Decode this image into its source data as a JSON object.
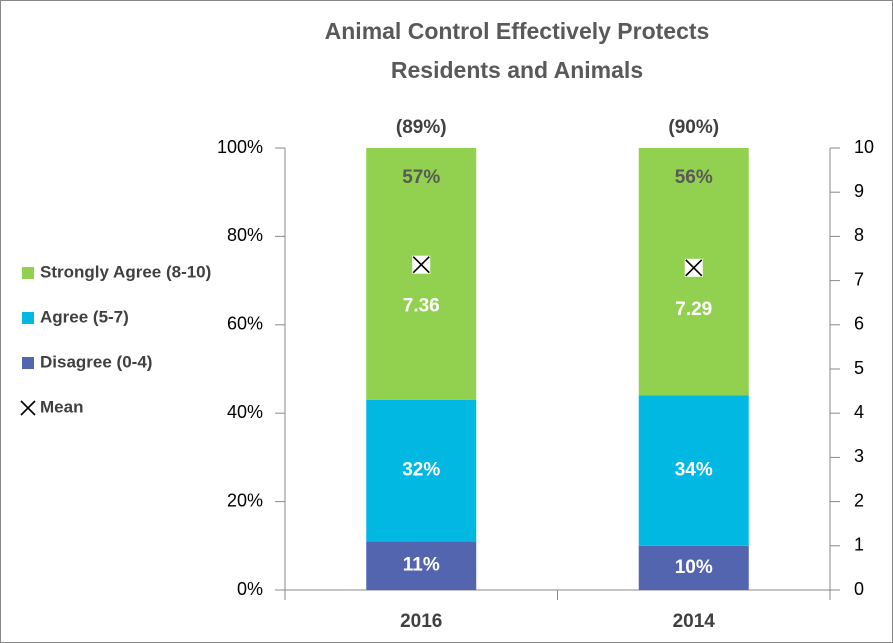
{
  "chart_data": {
    "type": "stacked_bar",
    "title": [
      "Animal Control Effectively Protects",
      "Residents and Animals"
    ],
    "categories": [
      "2016",
      "2014"
    ],
    "series": [
      {
        "name": "Disagree (0-4)",
        "color": "#5465b0",
        "values": [
          11,
          10
        ],
        "value_labels": [
          "11%",
          "10%"
        ],
        "label_color": "#ffffff"
      },
      {
        "name": "Agree (5-7)",
        "color": "#00b8e2",
        "values": [
          32,
          34
        ],
        "value_labels": [
          "32%",
          "34%"
        ],
        "label_color": "#ffffff"
      },
      {
        "name": "Strongly Agree (8-10)",
        "color": "#92d050",
        "values": [
          57,
          56
        ],
        "value_labels": [
          "57%",
          "56%"
        ],
        "label_color": "#595959"
      },
      {
        "name": "Mean",
        "type": "scatter",
        "axis": "y2",
        "color": "#000000",
        "values": [
          7.36,
          7.29
        ],
        "label_color": "#ffffff"
      }
    ],
    "annotations": [
      "(89%)",
      "(90%)"
    ],
    "ylim": [
      0,
      100
    ],
    "yticks": [
      {
        "value": 0,
        "label": "0%"
      },
      {
        "value": 20,
        "label": "20%"
      },
      {
        "value": 40,
        "label": "40%"
      },
      {
        "value": 60,
        "label": "60%"
      },
      {
        "value": 80,
        "label": "80%"
      },
      {
        "value": 100,
        "label": "100%"
      }
    ],
    "y2lim": [
      0,
      10
    ],
    "y2ticks": [
      0,
      1,
      2,
      3,
      4,
      5,
      6,
      7,
      8,
      9,
      10
    ],
    "legend": "left",
    "grid": false
  }
}
